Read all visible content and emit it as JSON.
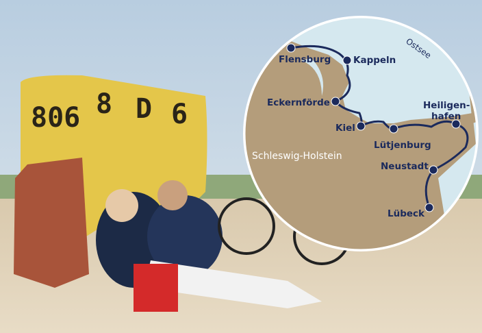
{
  "photo": {
    "chair_numbers": [
      "806",
      "8",
      "D",
      "6"
    ]
  },
  "map": {
    "sea_label": "Ostsee",
    "region_label": "Schleswig-Holstein",
    "places": [
      {
        "lines": [
          "Flensburg"
        ]
      },
      {
        "lines": [
          "Kappeln"
        ]
      },
      {
        "lines": [
          "Eckernförde"
        ]
      },
      {
        "lines": [
          "Kiel"
        ]
      },
      {
        "lines": [
          "Lütjenburg"
        ]
      },
      {
        "lines": [
          "Heiligen-",
          "hafen"
        ]
      },
      {
        "lines": [
          "Neustadt"
        ]
      },
      {
        "lines": [
          "Lübeck"
        ]
      }
    ]
  }
}
